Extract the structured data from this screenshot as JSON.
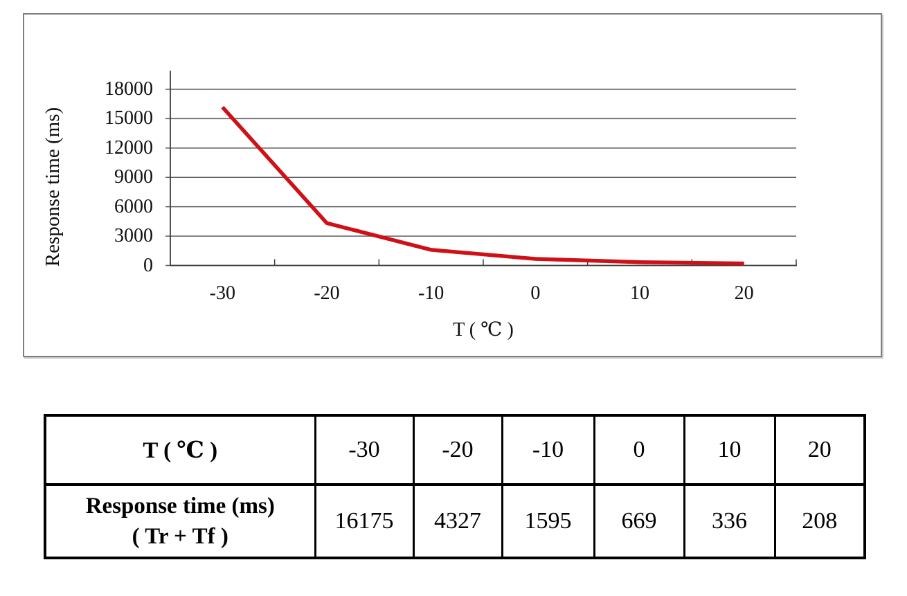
{
  "chart": {
    "ylabel": "Response time (ms)",
    "xlabel": "T ( ℃ )",
    "ytick_labels": [
      "0",
      "3000",
      "6000",
      "9000",
      "12000",
      "15000",
      "18000"
    ],
    "colors": {
      "line": "#cf1016",
      "grid": "#5e5e5e",
      "axis": "#3e3e3e",
      "frame": "#7f7f7f"
    }
  },
  "chart_data": {
    "type": "line",
    "title": "",
    "xlabel": "T ( ℃ )",
    "ylabel": "Response time (ms)",
    "categories": [
      "-30",
      "-20",
      "-10",
      "0",
      "10",
      "20"
    ],
    "x_numeric": [
      -30,
      -20,
      -10,
      0,
      10,
      20
    ],
    "series": [
      {
        "name": "Response time (ms) ( Tr + Tf )",
        "values": [
          16175,
          4327,
          1595,
          669,
          336,
          208
        ],
        "color": "#cf1016"
      }
    ],
    "ylim": [
      0,
      18000
    ],
    "ytick_step": 3000,
    "grid": "horizontal",
    "legend": "none"
  },
  "table": {
    "header_label": "T ( ℃ )",
    "row_label_line1": "Response time (ms)",
    "row_label_line2": "( Tr + Tf )",
    "temperatures": [
      "-30",
      "-20",
      "-10",
      "0",
      "10",
      "20"
    ],
    "response_times": [
      "16175",
      "4327",
      "1595",
      "669",
      "336",
      "208"
    ]
  }
}
